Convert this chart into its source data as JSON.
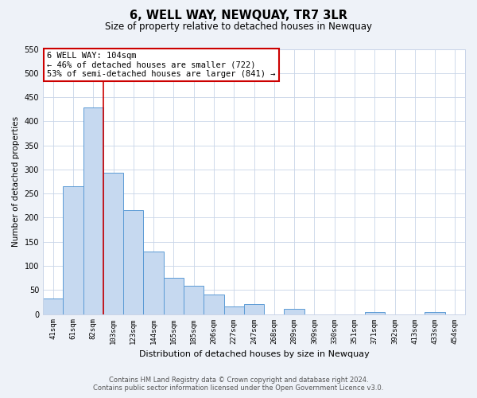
{
  "title": "6, WELL WAY, NEWQUAY, TR7 3LR",
  "subtitle": "Size of property relative to detached houses in Newquay",
  "xlabel": "Distribution of detached houses by size in Newquay",
  "ylabel": "Number of detached properties",
  "bar_labels": [
    "41sqm",
    "61sqm",
    "82sqm",
    "103sqm",
    "123sqm",
    "144sqm",
    "165sqm",
    "185sqm",
    "206sqm",
    "227sqm",
    "247sqm",
    "268sqm",
    "289sqm",
    "309sqm",
    "330sqm",
    "351sqm",
    "371sqm",
    "392sqm",
    "413sqm",
    "433sqm",
    "454sqm"
  ],
  "bar_values": [
    32,
    265,
    428,
    293,
    215,
    129,
    76,
    59,
    40,
    15,
    21,
    0,
    11,
    0,
    0,
    0,
    5,
    0,
    0,
    5,
    0
  ],
  "bar_color": "#c6d9f0",
  "bar_edge_color": "#5b9bd5",
  "vline_color": "#cc0000",
  "vline_index": 3,
  "annotation_line1": "6 WELL WAY: 104sqm",
  "annotation_line2": "← 46% of detached houses are smaller (722)",
  "annotation_line3": "53% of semi-detached houses are larger (841) →",
  "annotation_box_color": "#cc0000",
  "annotation_bg": "#ffffff",
  "ylim": [
    0,
    550
  ],
  "yticks": [
    0,
    50,
    100,
    150,
    200,
    250,
    300,
    350,
    400,
    450,
    500,
    550
  ],
  "footer_line1": "Contains HM Land Registry data © Crown copyright and database right 2024.",
  "footer_line2": "Contains public sector information licensed under the Open Government Licence v3.0.",
  "bg_color": "#eef2f8",
  "plot_bg_color": "#ffffff",
  "grid_color": "#c8d4e8"
}
